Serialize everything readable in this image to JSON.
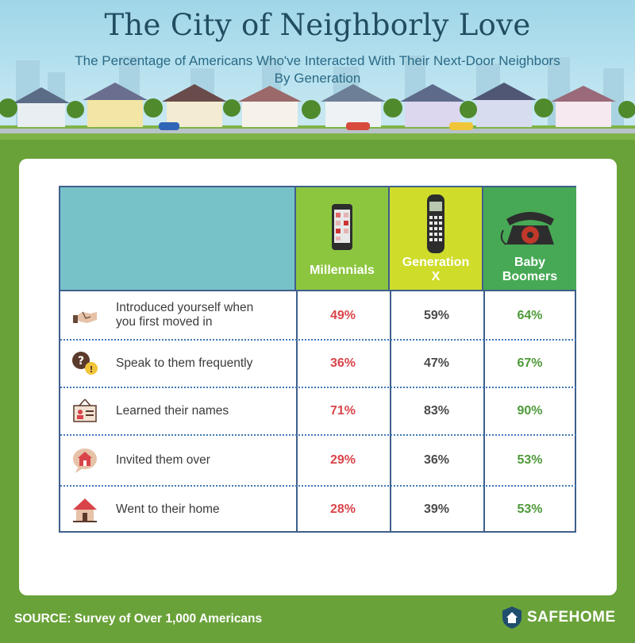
{
  "header": {
    "title": "The City of Neighborly Love",
    "subtitle_line1": "The Percentage of Americans Who've Interacted With Their Next-Door Neighbors",
    "subtitle_line2": "By Generation"
  },
  "columns": [
    {
      "label": "Millennials",
      "icon": "smartphone-icon",
      "color": "#8cc63f"
    },
    {
      "label_line1": "Generation",
      "label_line2": "X",
      "icon": "cordless-phone-icon",
      "color": "#cfdc2a"
    },
    {
      "label_line1": "Baby",
      "label_line2": "Boomers",
      "icon": "rotary-phone-icon",
      "color": "#47a955"
    }
  ],
  "rows": [
    {
      "label_line1": "Introduced yourself when",
      "label_line2": "you first moved in",
      "icon": "handshake-icon",
      "m": "49%",
      "g": "59%",
      "b": "64%"
    },
    {
      "label": "Speak to them frequently",
      "icon": "speech-question-icon",
      "m": "36%",
      "g": "47%",
      "b": "67%"
    },
    {
      "label": "Learned their names",
      "icon": "name-tag-icon",
      "m": "71%",
      "g": "83%",
      "b": "90%"
    },
    {
      "label": "Invited them over",
      "icon": "house-speech-bubble-icon",
      "m": "29%",
      "g": "36%",
      "b": "53%"
    },
    {
      "label": "Went to their home",
      "icon": "house-icon",
      "m": "28%",
      "g": "39%",
      "b": "53%"
    }
  ],
  "chart_data": {
    "type": "table",
    "title": "The City of Neighborly Love",
    "subtitle": "The Percentage of Americans Who've Interacted With Their Next-Door Neighbors By Generation",
    "columns": [
      "Millennials",
      "Generation X",
      "Baby Boomers"
    ],
    "categories": [
      "Introduced yourself when you first moved in",
      "Speak to them frequently",
      "Learned their names",
      "Invited them over",
      "Went to their home"
    ],
    "series": [
      {
        "name": "Millennials",
        "values": [
          49,
          36,
          71,
          29,
          28
        ]
      },
      {
        "name": "Generation X",
        "values": [
          59,
          47,
          83,
          36,
          39
        ]
      },
      {
        "name": "Baby Boomers",
        "values": [
          64,
          67,
          90,
          53,
          53
        ]
      }
    ],
    "unit": "%"
  },
  "footer": {
    "source": "SOURCE: Survey of Over 1,000 Americans",
    "brand": "SAFEHOME"
  },
  "colors": {
    "millennials_value": "#d9444a",
    "genx_value": "#4a4a4a",
    "boomers_value": "#4e9a3a",
    "background_green": "#6aa23a",
    "table_border": "#3f5f8c"
  }
}
